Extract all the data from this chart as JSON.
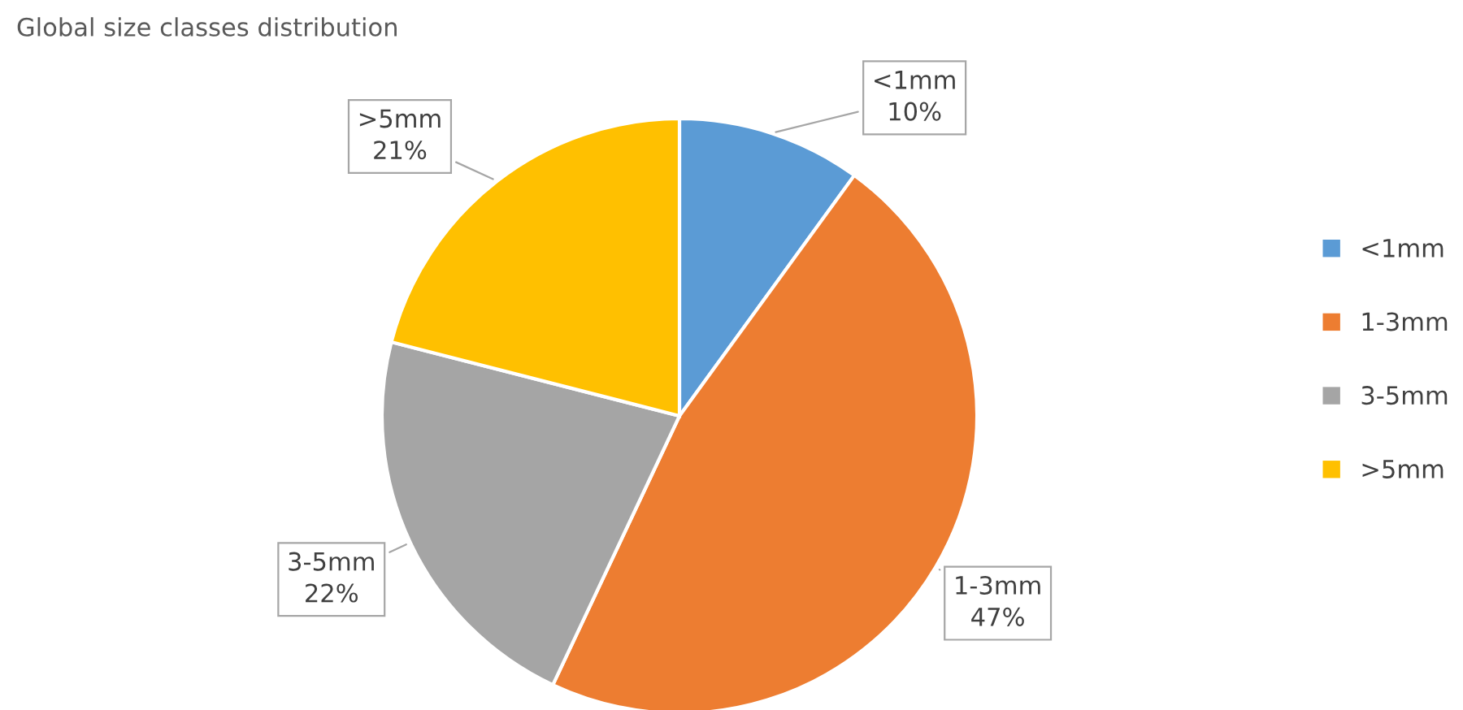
{
  "chart_data": {
    "type": "pie",
    "title": "Global size classes distribution",
    "categories": [
      "<1mm",
      "1-3mm",
      "3-5mm",
      ">5mm"
    ],
    "values": [
      10,
      47,
      22,
      21
    ],
    "value_labels": [
      "10%",
      "47%",
      "22%",
      "21%"
    ],
    "colors": [
      "#5b9bd5",
      "#ed7d31",
      "#a5a5a5",
      "#ffc000"
    ],
    "legend": "right"
  }
}
